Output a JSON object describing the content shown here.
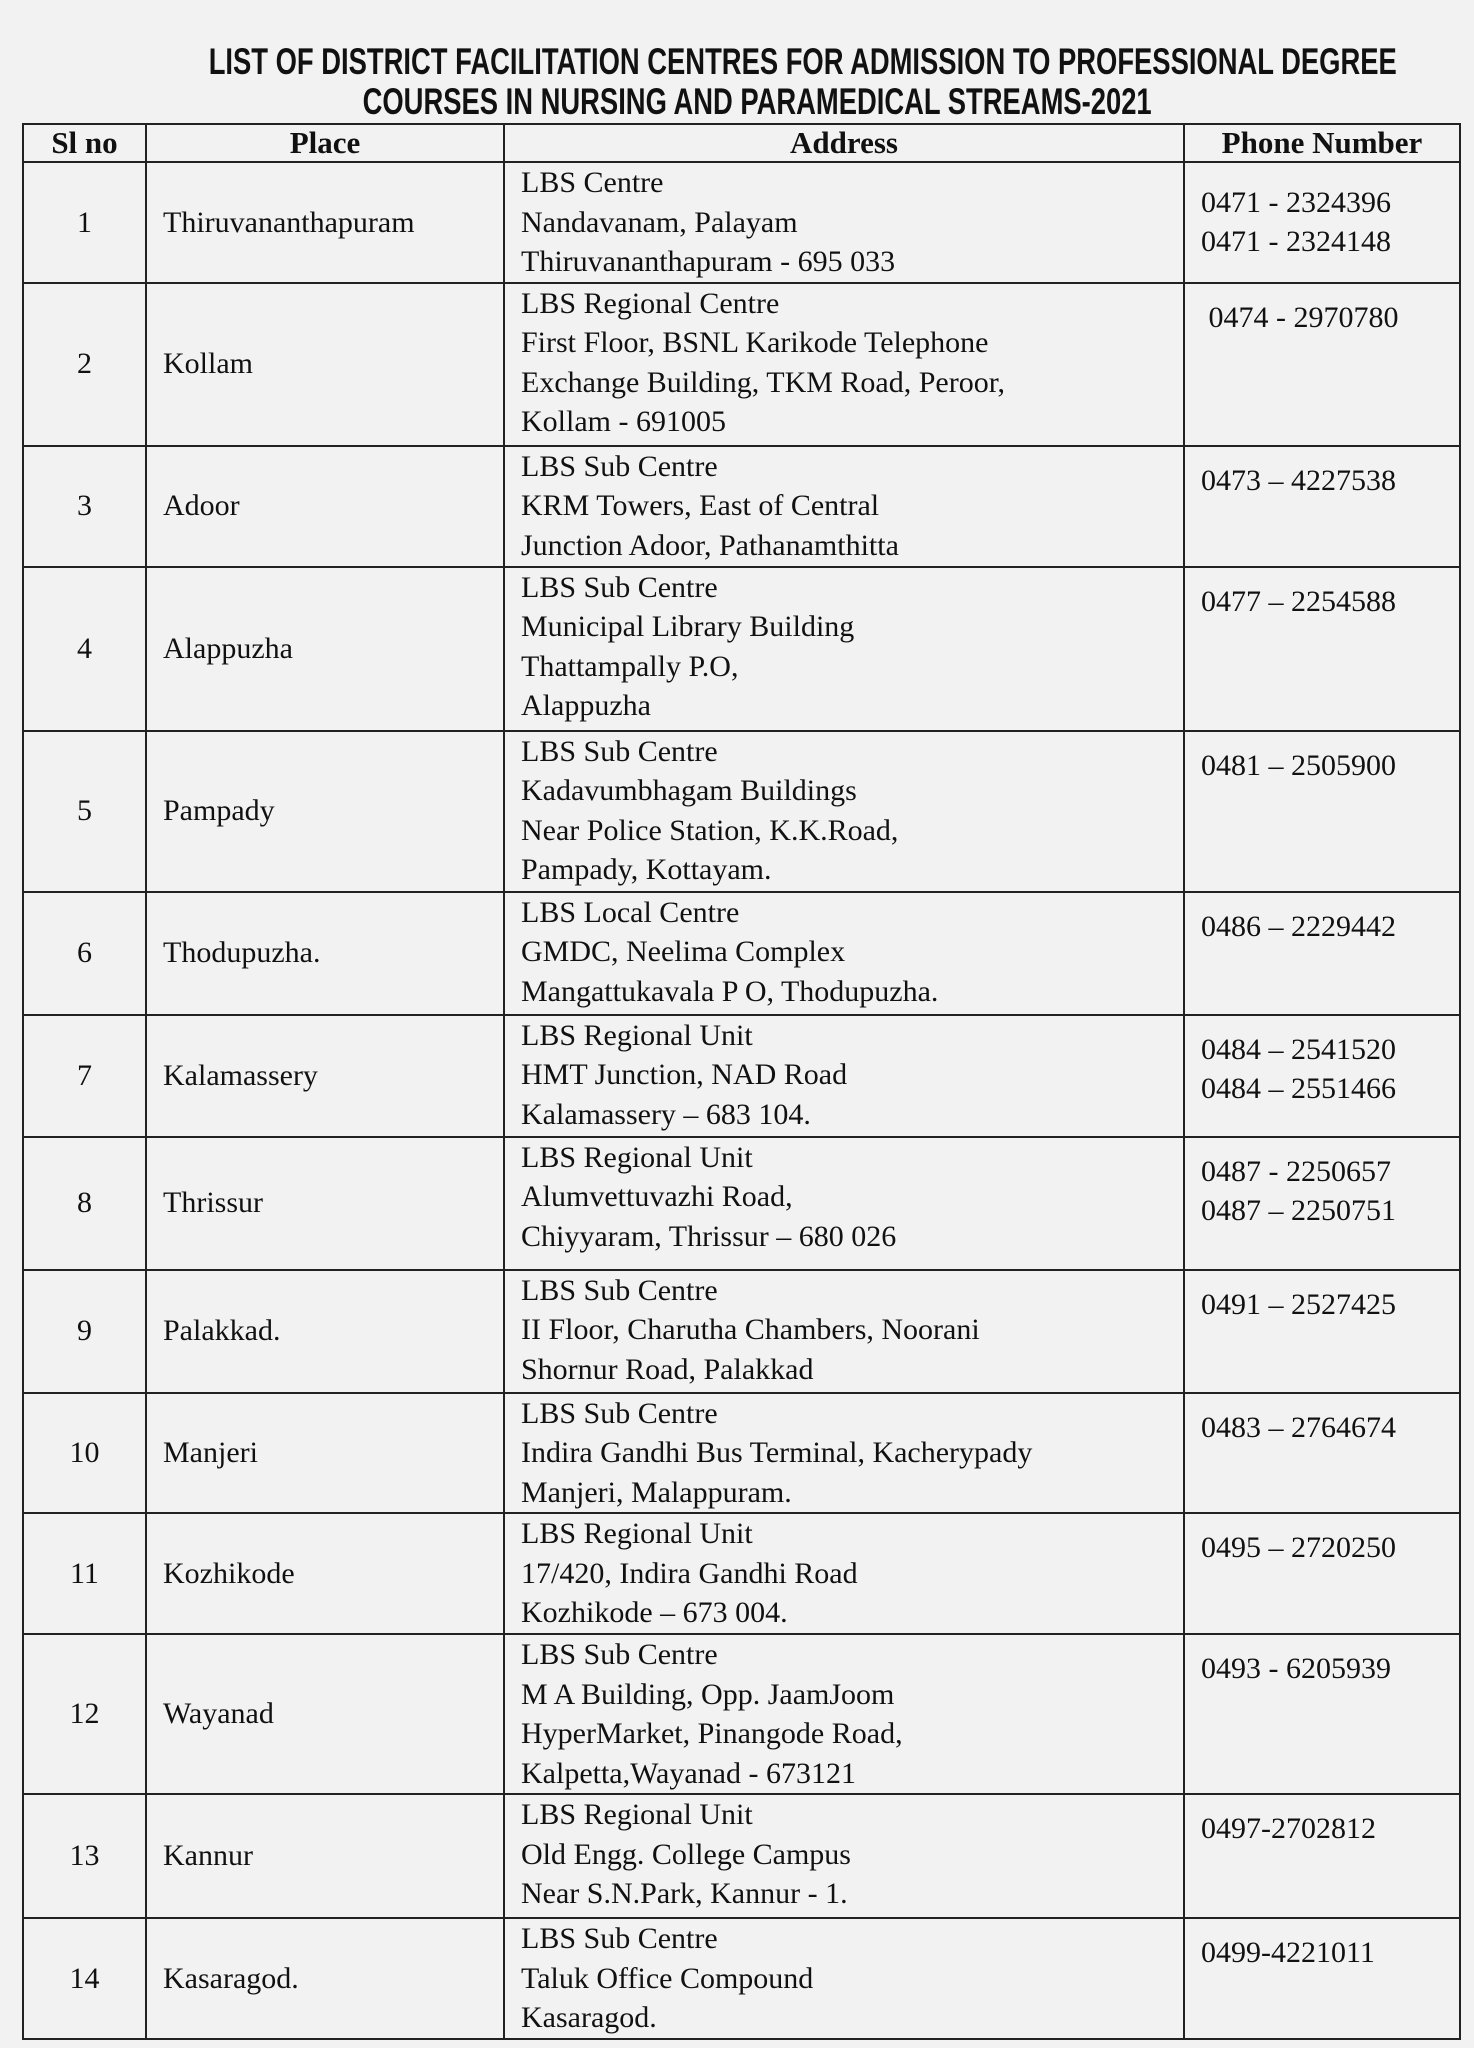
{
  "title": {
    "line1": "LIST OF DISTRICT FACILITATION CENTRES FOR ADMISSION TO PROFESSIONAL DEGREE",
    "line2": "COURSES IN NURSING AND PARAMEDICAL STREAMS-2021"
  },
  "table": {
    "headers": [
      "Sl no",
      "Place",
      "Address",
      "Phone Number"
    ],
    "rows": [
      {
        "sl": "1",
        "place": "Thiruvananthapuram",
        "address": [
          "LBS Centre",
          "Nandavanam, Palayam",
          "Thiruvananthapuram - 695 033"
        ],
        "phone": [
          "0471 - 2324396",
          "0471 - 2324148"
        ]
      },
      {
        "sl": "2",
        "place": "Kollam",
        "address": [
          "LBS Regional Centre",
          "First Floor, BSNL Karikode Telephone",
          "Exchange Building, TKM Road, Peroor,",
          "Kollam - 691005"
        ],
        "phone": [
          " 0474 - 2970780"
        ]
      },
      {
        "sl": "3",
        "place": "Adoor",
        "address": [
          "LBS Sub Centre",
          "KRM Towers, East of Central",
          "Junction Adoor, Pathanamthitta"
        ],
        "phone": [
          "0473 – 4227538"
        ]
      },
      {
        "sl": "4",
        "place": "Alappuzha",
        "address": [
          "LBS Sub Centre",
          "Municipal Library Building",
          "Thattampally P.O,",
          "Alappuzha"
        ],
        "phone": [
          "0477 – 2254588"
        ]
      },
      {
        "sl": "5",
        "place": "Pampady",
        "address": [
          "LBS Sub Centre",
          "Kadavumbhagam Buildings",
          "Near Police Station, K.K.Road,",
          "Pampady, Kottayam."
        ],
        "phone": [
          "0481 – 2505900"
        ]
      },
      {
        "sl": "6",
        "place": "Thodupuzha.",
        "address": [
          "LBS Local Centre",
          "GMDC, Neelima Complex",
          "Mangattukavala P O, Thodupuzha."
        ],
        "phone": [
          "0486 – 2229442"
        ]
      },
      {
        "sl": "7",
        "place": "Kalamassery",
        "address": [
          "LBS Regional Unit",
          "HMT Junction, NAD Road",
          "Kalamassery – 683 104."
        ],
        "phone": [
          "0484 – 2541520",
          "0484 – 2551466"
        ]
      },
      {
        "sl": "8",
        "place": "Thrissur",
        "address": [
          "LBS Regional Unit",
          "Alumvettuvazhi Road,",
          "Chiyyaram, Thrissur – 680 026"
        ],
        "phone": [
          "0487 - 2250657",
          "0487 – 2250751"
        ]
      },
      {
        "sl": "9",
        "place": "Palakkad.",
        "address": [
          "LBS Sub Centre",
          "II Floor, Charutha Chambers, Noorani",
          "Shornur Road, Palakkad"
        ],
        "phone": [
          "0491 – 2527425"
        ]
      },
      {
        "sl": "10",
        "place": "Manjeri",
        "address": [
          "LBS Sub Centre",
          "Indira Gandhi Bus Terminal, Kacherypady",
          "Manjeri, Malappuram."
        ],
        "phone": [
          "0483 – 2764674"
        ]
      },
      {
        "sl": "11",
        "place": "Kozhikode",
        "address": [
          "LBS Regional Unit",
          "17/420, Indira Gandhi Road",
          "Kozhikode – 673 004."
        ],
        "phone": [
          "0495 – 2720250"
        ]
      },
      {
        "sl": "12",
        "place": "Wayanad",
        "address": [
          "LBS Sub Centre",
          "M A Building, Opp. JaamJoom",
          "HyperMarket, Pinangode Road,",
          "Kalpetta,Wayanad - 673121"
        ],
        "phone": [
          "0493 - 6205939"
        ]
      },
      {
        "sl": "13",
        "place": "Kannur",
        "address": [
          "LBS Regional Unit",
          "Old Engg. College Campus",
          "Near S.N.Park, Kannur - 1."
        ],
        "phone": [
          "0497-2702812"
        ]
      },
      {
        "sl": "14",
        "place": "Kasaragod.",
        "address": [
          "LBS Sub Centre",
          "Taluk Office Compound",
          "Kasaragod."
        ],
        "phone": [
          "0499-4221011"
        ]
      }
    ]
  }
}
